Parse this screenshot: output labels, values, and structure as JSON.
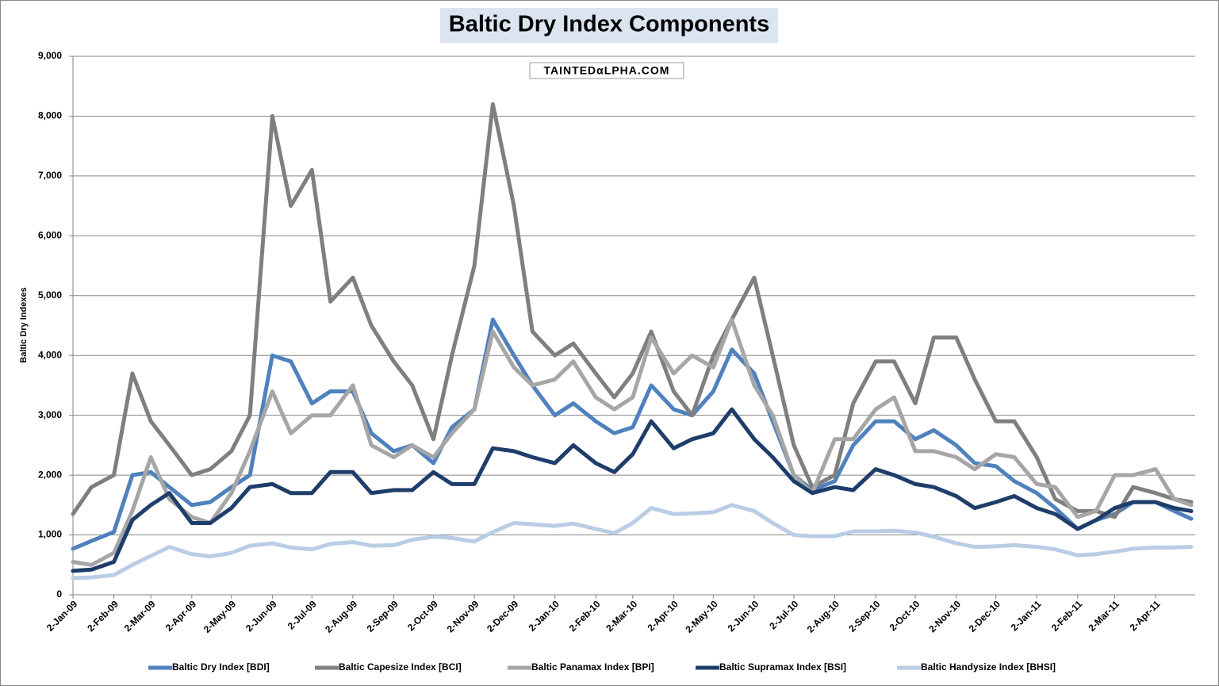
{
  "chart_data": {
    "type": "line",
    "title": "Baltic Dry Index Components",
    "watermark": "TAINTEDαLPHA.COM",
    "y_label": "Baltic Dry Indexes",
    "x": [
      "2009-01-02",
      "2009-01-16",
      "2009-02-02",
      "2009-02-16",
      "2009-03-02",
      "2009-03-16",
      "2009-04-02",
      "2009-04-16",
      "2009-05-02",
      "2009-05-16",
      "2009-06-02",
      "2009-06-16",
      "2009-07-02",
      "2009-07-16",
      "2009-08-02",
      "2009-08-16",
      "2009-09-02",
      "2009-09-16",
      "2009-10-02",
      "2009-10-16",
      "2009-11-02",
      "2009-11-16",
      "2009-12-02",
      "2009-12-16",
      "2010-01-02",
      "2010-01-16",
      "2010-02-02",
      "2010-02-16",
      "2010-03-02",
      "2010-03-16",
      "2010-04-02",
      "2010-04-16",
      "2010-05-02",
      "2010-05-16",
      "2010-06-02",
      "2010-06-16",
      "2010-07-02",
      "2010-07-16",
      "2010-08-02",
      "2010-08-16",
      "2010-09-02",
      "2010-09-16",
      "2010-10-02",
      "2010-10-16",
      "2010-11-02",
      "2010-11-16",
      "2010-12-02",
      "2010-12-16",
      "2011-01-02",
      "2011-01-16",
      "2011-02-02",
      "2011-02-16",
      "2011-03-02",
      "2011-03-16",
      "2011-04-02",
      "2011-04-16",
      "2011-04-29"
    ],
    "xlim": [
      "2009-01-02",
      "2011-05-02"
    ],
    "xticks": [
      {
        "value": "2009-01-02",
        "label": "2-Jan-09"
      },
      {
        "value": "2009-02-02",
        "label": "2-Feb-09"
      },
      {
        "value": "2009-03-02",
        "label": "2-Mar-09"
      },
      {
        "value": "2009-04-02",
        "label": "2-Apr-09"
      },
      {
        "value": "2009-05-02",
        "label": "2-May-09"
      },
      {
        "value": "2009-06-02",
        "label": "2-Jun-09"
      },
      {
        "value": "2009-07-02",
        "label": "2-Jul-09"
      },
      {
        "value": "2009-08-02",
        "label": "2-Aug-09"
      },
      {
        "value": "2009-09-02",
        "label": "2-Sep-09"
      },
      {
        "value": "2009-10-02",
        "label": "2-Oct-09"
      },
      {
        "value": "2009-11-02",
        "label": "2-Nov-09"
      },
      {
        "value": "2009-12-02",
        "label": "2-Dec-09"
      },
      {
        "value": "2010-01-02",
        "label": "2-Jan-10"
      },
      {
        "value": "2010-02-02",
        "label": "2-Feb-10"
      },
      {
        "value": "2010-03-02",
        "label": "2-Mar-10"
      },
      {
        "value": "2010-04-02",
        "label": "2-Apr-10"
      },
      {
        "value": "2010-05-02",
        "label": "2-May-10"
      },
      {
        "value": "2010-06-02",
        "label": "2-Jun-10"
      },
      {
        "value": "2010-07-02",
        "label": "2-Jul-10"
      },
      {
        "value": "2010-08-02",
        "label": "2-Aug-10"
      },
      {
        "value": "2010-09-02",
        "label": "2-Sep-10"
      },
      {
        "value": "2010-10-02",
        "label": "2-Oct-10"
      },
      {
        "value": "2010-11-02",
        "label": "2-Nov-10"
      },
      {
        "value": "2010-12-02",
        "label": "2-Dec-10"
      },
      {
        "value": "2011-01-02",
        "label": "2-Jan-11"
      },
      {
        "value": "2011-02-02",
        "label": "2-Feb-11"
      },
      {
        "value": "2011-03-02",
        "label": "2-Mar-11"
      },
      {
        "value": "2011-04-02",
        "label": "2-Apr-11"
      }
    ],
    "ylim": [
      0,
      9000
    ],
    "yticks": [
      0,
      {
        "value": 1000,
        "label": "1,000"
      },
      {
        "value": 2000,
        "label": "2,000"
      },
      {
        "value": 3000,
        "label": "3,000"
      },
      {
        "value": 4000,
        "label": "4,000"
      },
      {
        "value": 5000,
        "label": "5,000"
      },
      {
        "value": 6000,
        "label": "6,000"
      },
      {
        "value": 7000,
        "label": "7,000"
      },
      {
        "value": 8000,
        "label": "8,000"
      },
      {
        "value": 9000,
        "label": "9,000"
      }
    ],
    "grid": true,
    "legend": "bottom",
    "series": [
      {
        "name": "Baltic Dry Index [BDI]",
        "color": "#4f81bd",
        "values": [
          770,
          900,
          1050,
          2000,
          2050,
          1800,
          1500,
          1550,
          1800,
          2000,
          4000,
          3900,
          3200,
          3400,
          3400,
          2700,
          2400,
          2500,
          2200,
          2800,
          3100,
          4600,
          4000,
          3500,
          3000,
          3200,
          2900,
          2700,
          2800,
          3500,
          3100,
          3000,
          3400,
          4100,
          3700,
          2900,
          2000,
          1750,
          1900,
          2500,
          2900,
          2900,
          2600,
          2750,
          2500,
          2200,
          2150,
          1900,
          1700,
          1450,
          1100,
          1250,
          1350,
          1550,
          1550,
          1400,
          1270
        ]
      },
      {
        "name": "Baltic Capesize Index [BCI]",
        "color": "#7f7f7f",
        "values": [
          1350,
          1800,
          2000,
          3700,
          2900,
          2500,
          2000,
          2100,
          2400,
          3000,
          8000,
          6500,
          7100,
          4900,
          5300,
          4500,
          3900,
          3500,
          2600,
          4000,
          5500,
          8200,
          6500,
          4400,
          4000,
          4200,
          3700,
          3300,
          3700,
          4400,
          3400,
          3000,
          4000,
          4600,
          5300,
          4000,
          2500,
          1800,
          2000,
          3200,
          3900,
          3900,
          3200,
          4300,
          4300,
          3600,
          2900,
          2900,
          2300,
          1600,
          1400,
          1400,
          1300,
          1800,
          1700,
          1600,
          1550
        ]
      },
      {
        "name": "Baltic Panamax Index [BPI]",
        "color": "#a6a6a6",
        "values": [
          550,
          500,
          700,
          1400,
          2300,
          1600,
          1300,
          1200,
          1700,
          2400,
          3400,
          2700,
          3000,
          3000,
          3500,
          2500,
          2300,
          2500,
          2300,
          2700,
          3100,
          4400,
          3800,
          3500,
          3600,
          3900,
          3300,
          3100,
          3300,
          4300,
          3700,
          4000,
          3800,
          4600,
          3500,
          3000,
          2000,
          1700,
          2600,
          2600,
          3100,
          3300,
          2400,
          2400,
          2300,
          2100,
          2350,
          2300,
          1850,
          1800,
          1300,
          1400,
          2000,
          2000,
          2100,
          1600,
          1500
        ]
      },
      {
        "name": "Baltic Supramax Index [BSI]",
        "color": "#1f3d6b",
        "values": [
          400,
          420,
          550,
          1250,
          1500,
          1700,
          1200,
          1200,
          1450,
          1800,
          1850,
          1700,
          1700,
          2050,
          2050,
          1700,
          1750,
          1750,
          2050,
          1850,
          1850,
          2450,
          2400,
          2300,
          2200,
          2500,
          2200,
          2050,
          2350,
          2900,
          2450,
          2600,
          2700,
          3100,
          2600,
          2300,
          1900,
          1700,
          1800,
          1750,
          2100,
          2000,
          1850,
          1800,
          1650,
          1450,
          1550,
          1650,
          1450,
          1350,
          1100,
          1250,
          1450,
          1550,
          1550,
          1450,
          1400
        ]
      },
      {
        "name": "Baltic Handysize Index [BHSI]",
        "color": "#b9cde5",
        "values": [
          280,
          290,
          330,
          500,
          650,
          800,
          680,
          640,
          700,
          820,
          860,
          790,
          760,
          850,
          880,
          820,
          830,
          920,
          970,
          950,
          890,
          1050,
          1200,
          1180,
          1150,
          1190,
          1100,
          1030,
          1200,
          1450,
          1350,
          1360,
          1380,
          1500,
          1400,
          1200,
          1000,
          980,
          980,
          1060,
          1060,
          1070,
          1040,
          970,
          860,
          800,
          810,
          830,
          800,
          760,
          660,
          680,
          720,
          770,
          790,
          790,
          800
        ]
      }
    ]
  }
}
